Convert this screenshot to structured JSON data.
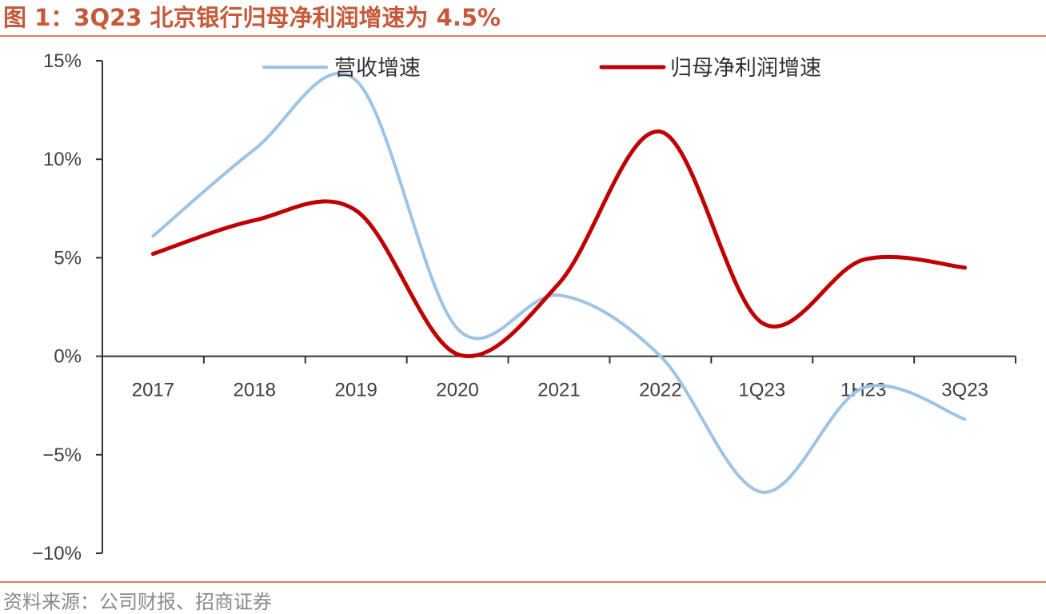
{
  "figure": {
    "title": "图 1：3Q23 北京银行归母净利润增速为 4.5%",
    "source": "资料来源：公司财报、招商证券"
  },
  "chart_data": {
    "type": "line",
    "categories": [
      "2017",
      "2018",
      "2019",
      "2020",
      "2021",
      "2022",
      "1Q23",
      "1H23",
      "3Q23"
    ],
    "series": [
      {
        "name": "营收增速",
        "color": "#9dc3e6",
        "values": [
          6.1,
          10.5,
          14.0,
          1.4,
          3.1,
          0.0,
          -6.9,
          -1.6,
          -3.2
        ]
      },
      {
        "name": "归母净利润增速",
        "color": "#c00000",
        "values": [
          5.2,
          6.9,
          7.4,
          0.1,
          3.7,
          11.4,
          1.7,
          4.9,
          4.5
        ]
      }
    ],
    "ylim": [
      -10,
      15
    ],
    "yticks": [
      -10,
      -5,
      0,
      5,
      10,
      15
    ],
    "ytick_labels": [
      "−10%",
      "−5%",
      "0%",
      "5%",
      "10%",
      "15%"
    ],
    "legend_position": "top",
    "grid": false
  }
}
